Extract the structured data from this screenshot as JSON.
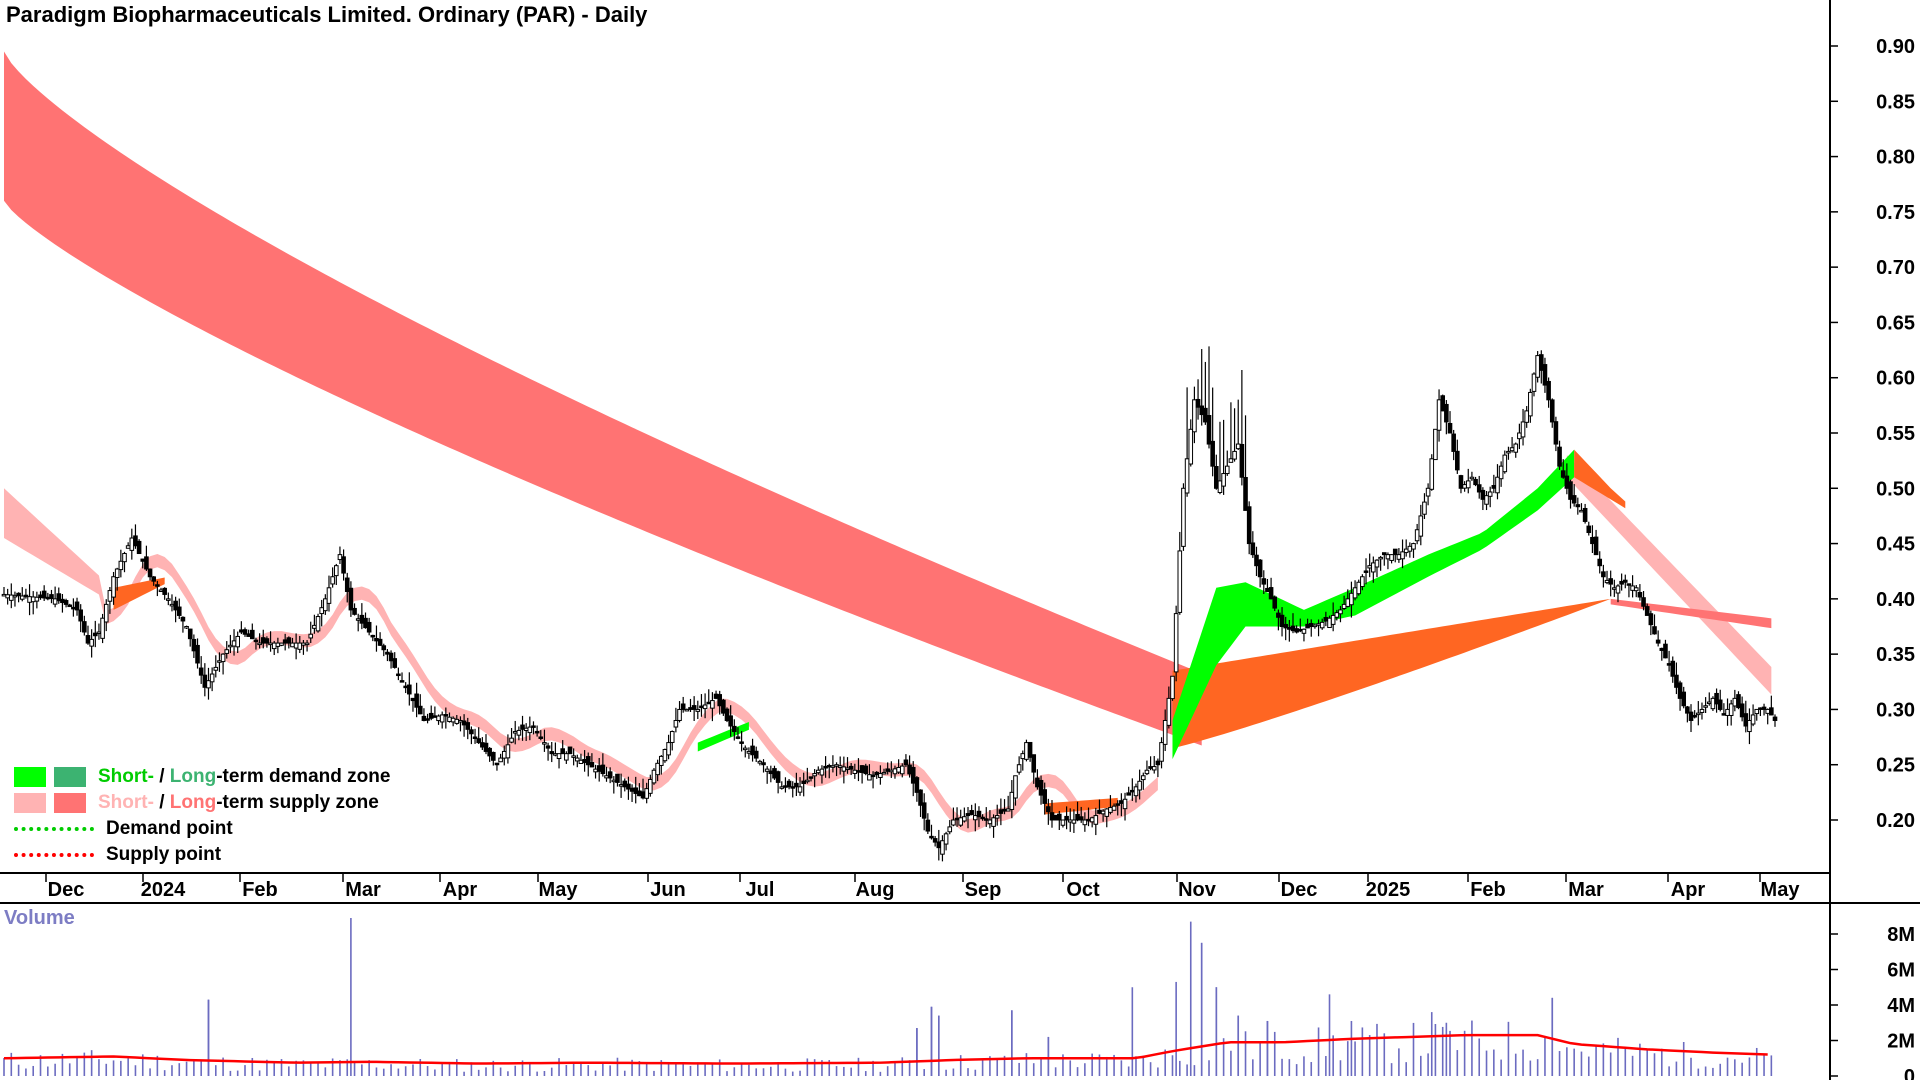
{
  "chart_title": "Paradigm Biopharmaceuticals Limited. Ordinary (PAR) - Daily",
  "legend": {
    "demand_zone": {
      "short": "Short-",
      "sep": " / ",
      "long": "Long",
      "suffix": "-term demand zone",
      "short_color": "#00ff00",
      "long_color": "#3cb371"
    },
    "supply_zone": {
      "short": "Short-",
      "sep": " / ",
      "long": "Long",
      "suffix": "-term supply zone",
      "short_color": "#ffb3b3",
      "long_color": "#ff7373"
    },
    "demand_point": {
      "label": "Demand point",
      "color": "#00cc00"
    },
    "supply_point": {
      "label": "Supply point",
      "color": "#ff0000"
    }
  },
  "volume_label": "Volume",
  "colors": {
    "candle": "#000000",
    "long_supply": "#ff7373",
    "short_supply": "#ffb3b3",
    "short_demand": "#00ff00",
    "transition": "#ff6622",
    "volume_bars": "#6b6bc0",
    "volume_ma": "#ff0000"
  },
  "chart_data": {
    "type": "candlestick",
    "price_axis": {
      "ticks": [
        "0.90",
        "0.85",
        "0.80",
        "0.75",
        "0.70",
        "0.65",
        "0.60",
        "0.55",
        "0.50",
        "0.45",
        "0.40",
        "0.35",
        "0.30",
        "0.25",
        "0.20"
      ],
      "range": [
        0.15,
        0.94
      ]
    },
    "x_axis_labels": [
      "Dec",
      "2024",
      "Feb",
      "Mar",
      "Apr",
      "May",
      "Jun",
      "Jul",
      "Aug",
      "Sep",
      "Oct",
      "Nov",
      "Dec",
      "2025",
      "Feb",
      "Mar",
      "Apr",
      "May"
    ],
    "volume_axis": {
      "ticks": [
        "8M",
        "6M",
        "4M",
        "2M",
        "0"
      ],
      "range_millions": [
        0,
        9
      ]
    },
    "close_path": [
      [
        0,
        0.404
      ],
      [
        14,
        0.4
      ],
      [
        20,
        0.39
      ],
      [
        23,
        0.36
      ],
      [
        26,
        0.37
      ],
      [
        30,
        0.42
      ],
      [
        35,
        0.455
      ],
      [
        40,
        0.42
      ],
      [
        45,
        0.4
      ],
      [
        50,
        0.375
      ],
      [
        55,
        0.32
      ],
      [
        60,
        0.35
      ],
      [
        65,
        0.37
      ],
      [
        70,
        0.36
      ],
      [
        75,
        0.36
      ],
      [
        80,
        0.36
      ],
      [
        83,
        0.36
      ],
      [
        88,
        0.4
      ],
      [
        92,
        0.44
      ],
      [
        95,
        0.39
      ],
      [
        100,
        0.37
      ],
      [
        105,
        0.35
      ],
      [
        110,
        0.32
      ],
      [
        115,
        0.29
      ],
      [
        120,
        0.295
      ],
      [
        125,
        0.29
      ],
      [
        130,
        0.27
      ],
      [
        135,
        0.25
      ],
      [
        140,
        0.28
      ],
      [
        145,
        0.285
      ],
      [
        150,
        0.26
      ],
      [
        155,
        0.26
      ],
      [
        160,
        0.25
      ],
      [
        165,
        0.24
      ],
      [
        170,
        0.23
      ],
      [
        175,
        0.22
      ],
      [
        178,
        0.245
      ],
      [
        182,
        0.27
      ],
      [
        185,
        0.3
      ],
      [
        190,
        0.3
      ],
      [
        195,
        0.31
      ],
      [
        198,
        0.29
      ],
      [
        203,
        0.265
      ],
      [
        208,
        0.25
      ],
      [
        213,
        0.23
      ],
      [
        218,
        0.23
      ],
      [
        223,
        0.245
      ],
      [
        228,
        0.25
      ],
      [
        233,
        0.245
      ],
      [
        238,
        0.24
      ],
      [
        243,
        0.245
      ],
      [
        247,
        0.25
      ],
      [
        250,
        0.225
      ],
      [
        253,
        0.19
      ],
      [
        256,
        0.175
      ],
      [
        260,
        0.2
      ],
      [
        265,
        0.205
      ],
      [
        270,
        0.2
      ],
      [
        275,
        0.21
      ],
      [
        277,
        0.24
      ],
      [
        280,
        0.27
      ],
      [
        283,
        0.23
      ],
      [
        287,
        0.2
      ],
      [
        292,
        0.2
      ],
      [
        297,
        0.2
      ],
      [
        302,
        0.21
      ],
      [
        306,
        0.215
      ],
      [
        310,
        0.23
      ],
      [
        313,
        0.245
      ],
      [
        316,
        0.25
      ],
      [
        318,
        0.29
      ],
      [
        320,
        0.33
      ],
      [
        323,
        0.5
      ],
      [
        326,
        0.58
      ],
      [
        329,
        0.56
      ],
      [
        332,
        0.5
      ],
      [
        335,
        0.52
      ],
      [
        338,
        0.54
      ],
      [
        341,
        0.45
      ],
      [
        344,
        0.42
      ],
      [
        347,
        0.4
      ],
      [
        350,
        0.375
      ],
      [
        354,
        0.37
      ],
      [
        358,
        0.375
      ],
      [
        362,
        0.38
      ],
      [
        366,
        0.39
      ],
      [
        370,
        0.41
      ],
      [
        374,
        0.43
      ],
      [
        378,
        0.44
      ],
      [
        382,
        0.44
      ],
      [
        386,
        0.45
      ],
      [
        390,
        0.5
      ],
      [
        393,
        0.58
      ],
      [
        396,
        0.55
      ],
      [
        399,
        0.5
      ],
      [
        402,
        0.51
      ],
      [
        405,
        0.49
      ],
      [
        408,
        0.5
      ],
      [
        411,
        0.53
      ],
      [
        414,
        0.54
      ],
      [
        417,
        0.57
      ],
      [
        420,
        0.62
      ],
      [
        423,
        0.58
      ],
      [
        426,
        0.52
      ],
      [
        429,
        0.49
      ],
      [
        432,
        0.48
      ],
      [
        435,
        0.45
      ],
      [
        438,
        0.42
      ],
      [
        441,
        0.41
      ],
      [
        444,
        0.415
      ],
      [
        447,
        0.41
      ],
      [
        450,
        0.385
      ],
      [
        453,
        0.36
      ],
      [
        456,
        0.34
      ],
      [
        459,
        0.31
      ],
      [
        462,
        0.29
      ],
      [
        465,
        0.3
      ],
      [
        468,
        0.31
      ],
      [
        471,
        0.295
      ],
      [
        474,
        0.31
      ],
      [
        477,
        0.285
      ],
      [
        480,
        0.3
      ],
      [
        483,
        0.3
      ],
      [
        485,
        0.29
      ]
    ],
    "volume_ma_path": [
      [
        0,
        1.0
      ],
      [
        30,
        1.1
      ],
      [
        50,
        0.9
      ],
      [
        80,
        0.75
      ],
      [
        100,
        0.8
      ],
      [
        130,
        0.7
      ],
      [
        160,
        0.75
      ],
      [
        200,
        0.7
      ],
      [
        240,
        0.75
      ],
      [
        260,
        0.9
      ],
      [
        280,
        1.0
      ],
      [
        310,
        1.0
      ],
      [
        320,
        1.4
      ],
      [
        335,
        1.9
      ],
      [
        350,
        1.9
      ],
      [
        370,
        2.1
      ],
      [
        400,
        2.3
      ],
      [
        420,
        2.3
      ],
      [
        430,
        1.8
      ],
      [
        450,
        1.5
      ],
      [
        470,
        1.3
      ],
      [
        485,
        1.2
      ]
    ]
  }
}
